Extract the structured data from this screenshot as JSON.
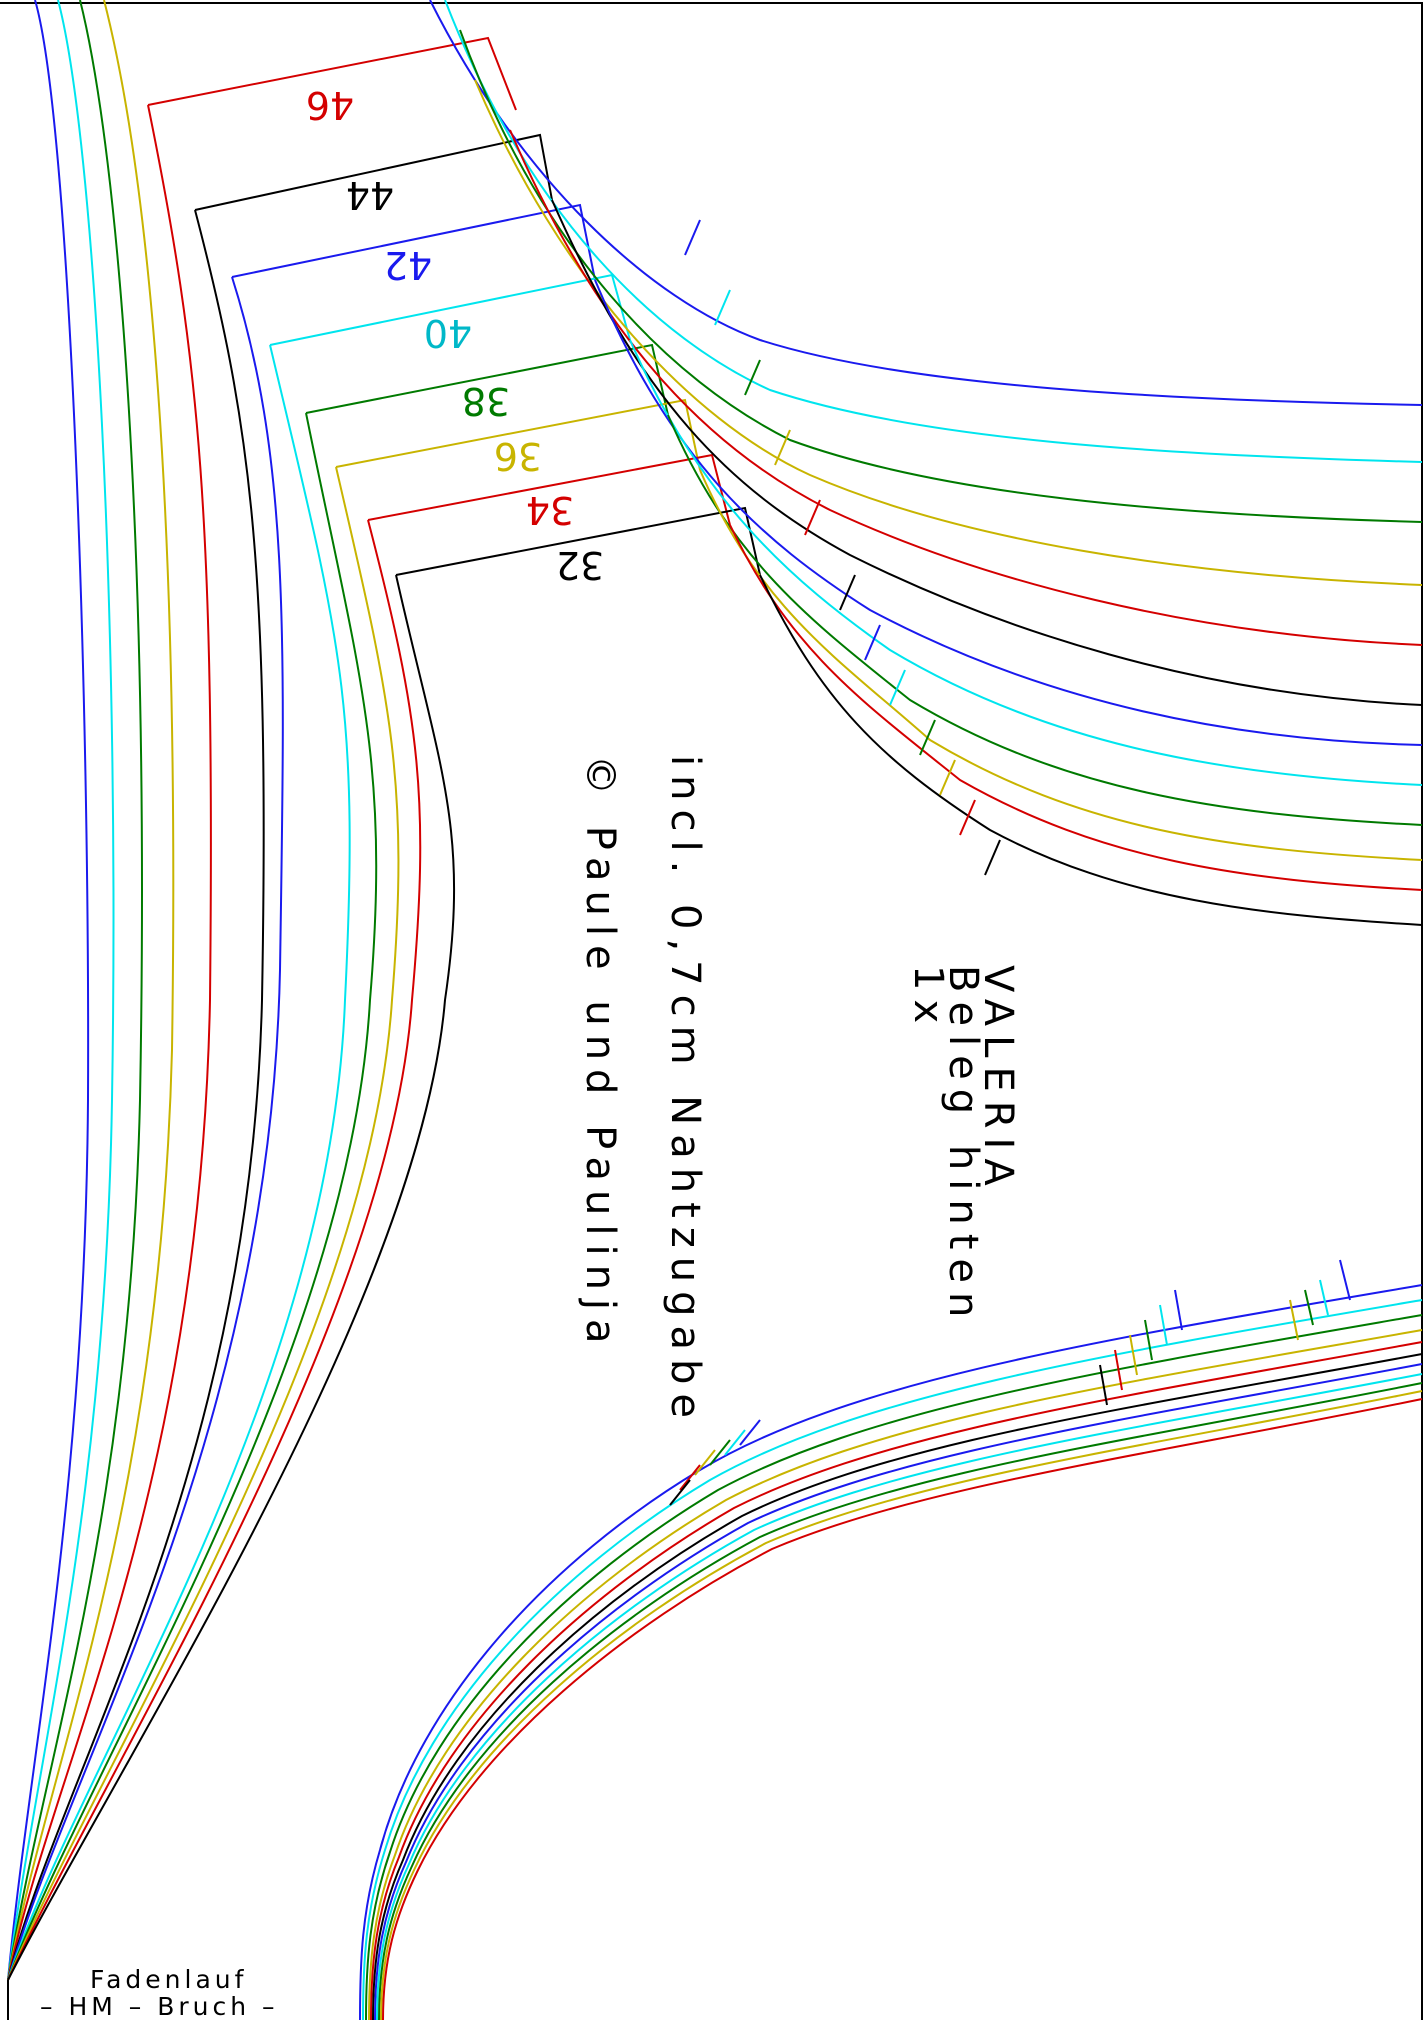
{
  "pattern": {
    "title": "VALERIA",
    "piece": "Beleg hinten",
    "quantity": "1x",
    "seam_allowance": "incl. 0,7cm Nahtzugabe",
    "copyright": "© Paule und Paulinja",
    "grain_line": "Fadenlauf",
    "fold_line": "– HM – Bruch –"
  },
  "sizes": [
    {
      "label": "46",
      "color": "#d40000"
    },
    {
      "label": "44",
      "color": "#000000"
    },
    {
      "label": "42",
      "color": "#1a1aee"
    },
    {
      "label": "40",
      "color": "#00e5ee"
    },
    {
      "label": "38",
      "color": "#007a00"
    },
    {
      "label": "36",
      "color": "#c8b400"
    },
    {
      "label": "34",
      "color": "#d40000"
    },
    {
      "label": "32",
      "color": "#000000"
    }
  ]
}
